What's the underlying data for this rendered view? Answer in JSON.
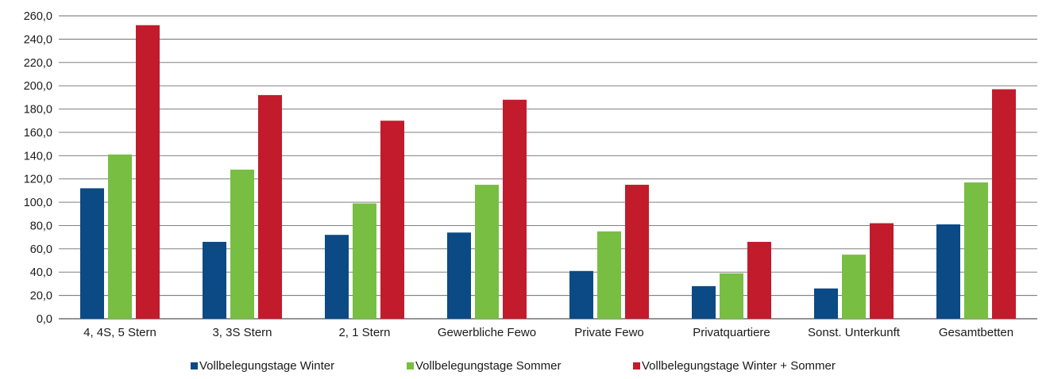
{
  "chart_data": {
    "type": "bar",
    "title": "",
    "xlabel": "",
    "ylabel": "",
    "ylim": [
      0,
      260
    ],
    "ytick_step": 20,
    "ytick_labels": [
      "0,0",
      "20,0",
      "40,0",
      "60,0",
      "80,0",
      "100,0",
      "120,0",
      "140,0",
      "160,0",
      "180,0",
      "200,0",
      "220,0",
      "240,0",
      "260,0"
    ],
    "grid": true,
    "legend_position": "bottom",
    "categories": [
      "4, 4S, 5 Stern",
      "3, 3S Stern",
      "2, 1 Stern",
      "Gewerbliche Fewo",
      "Private Fewo",
      "Privatquartiere",
      "Sonst. Unterkunft",
      "Gesamtbetten"
    ],
    "series": [
      {
        "name": "Vollbelegungstage Winter",
        "color": "#0b4a85",
        "values": [
          112,
          66,
          72,
          74,
          41,
          28,
          26,
          81
        ]
      },
      {
        "name": "Vollbelegungstage Sommer",
        "color": "#78be43",
        "values": [
          141,
          128,
          99,
          115,
          75,
          39,
          55,
          117
        ]
      },
      {
        "name": "Vollbelegungstage Winter + Sommer",
        "color": "#c21b2c",
        "values": [
          252,
          192,
          170,
          188,
          115,
          66,
          82,
          197
        ]
      }
    ]
  }
}
